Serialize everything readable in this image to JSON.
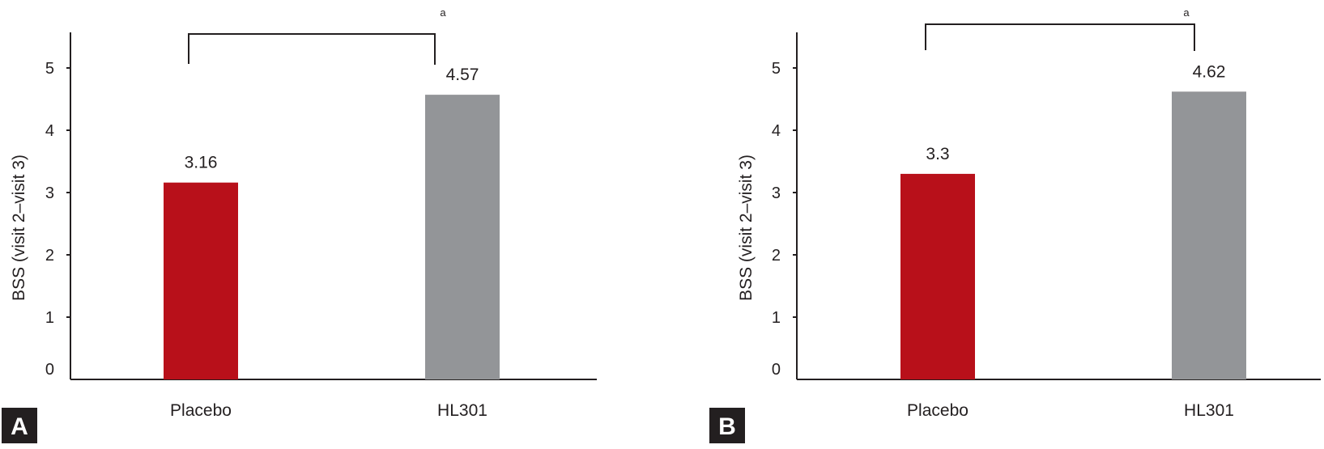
{
  "chart_data": [
    {
      "type": "bar",
      "panel": "A",
      "categories": [
        "Placebo",
        "HL301"
      ],
      "values": [
        3.16,
        4.57
      ],
      "value_labels": [
        "3.16",
        "4.57"
      ],
      "ylabel": "BSS (visit 2–visit 3)",
      "xlabel": "",
      "ylim": [
        0,
        5.5
      ],
      "yticks": [
        "0",
        "1",
        "2",
        "3",
        "4",
        "5"
      ],
      "significance_mark": "a",
      "grid": false,
      "colors": [
        "#b8101a",
        "#939598"
      ]
    },
    {
      "type": "bar",
      "panel": "B",
      "categories": [
        "Placebo",
        "HL301"
      ],
      "values": [
        3.3,
        4.62
      ],
      "value_labels": [
        "3.3",
        "4.62"
      ],
      "ylabel": "BSS (visit 2–visit 3)",
      "xlabel": "",
      "ylim": [
        0,
        5.5
      ],
      "yticks": [
        "0",
        "1",
        "2",
        "3",
        "4",
        "5"
      ],
      "significance_mark": "a",
      "grid": false,
      "colors": [
        "#b8101a",
        "#939598"
      ]
    }
  ]
}
